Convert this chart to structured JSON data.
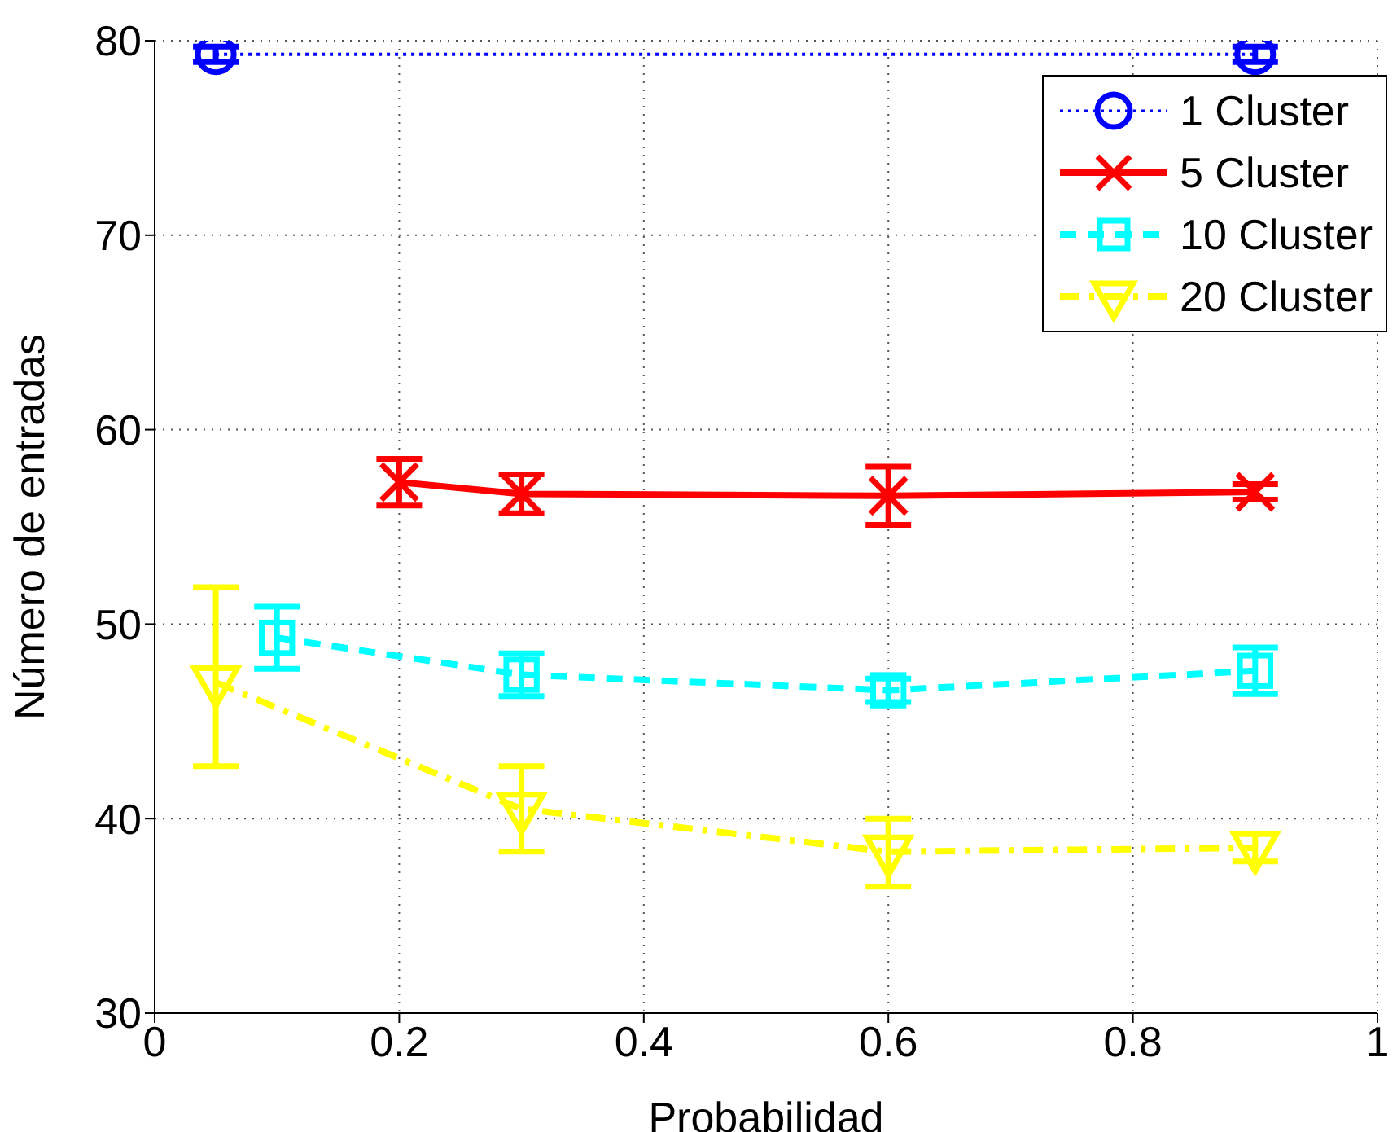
{
  "chart_data": {
    "type": "line",
    "xlabel": "Probabilidad",
    "ylabel": "Número de entradas",
    "xlim": [
      0,
      1
    ],
    "xticks": [
      0,
      0.2,
      0.4,
      0.6,
      0.8,
      1
    ],
    "ylim": [
      30,
      80
    ],
    "yticks": [
      30,
      40,
      50,
      60,
      70,
      80
    ],
    "grid": true,
    "legend": "top right",
    "series": [
      {
        "name": "1 Cluster",
        "color": "#0000ff",
        "x": [
          0.05,
          0.9
        ],
        "values": [
          79.3,
          79.3
        ],
        "errors": [
          0.4,
          0.4
        ],
        "marker": "circle",
        "line_style": "dotted"
      },
      {
        "name": "5 Cluster",
        "color": "#ff0000",
        "x": [
          0.2,
          0.3,
          0.6,
          0.9
        ],
        "values": [
          57.3,
          56.7,
          56.6,
          56.8
        ],
        "errors": [
          1.2,
          1.0,
          1.5,
          0.4
        ],
        "marker": "cross",
        "line_style": "solid"
      },
      {
        "name": "10 Cluster",
        "color": "#00ffff",
        "x": [
          0.1,
          0.3,
          0.6,
          0.9
        ],
        "values": [
          49.3,
          47.4,
          46.6,
          47.6
        ],
        "errors": [
          1.6,
          1.1,
          0.6,
          1.2
        ],
        "marker": "square",
        "line_style": "dashed"
      },
      {
        "name": "20 Cluster",
        "color": "#ffff00",
        "x": [
          0.05,
          0.3,
          0.6,
          0.9
        ],
        "values": [
          47.0,
          40.5,
          38.3,
          38.5
        ],
        "errors": [
          [
            42.7,
            51.9
          ],
          [
            38.3,
            42.7
          ],
          [
            36.5,
            40.0
          ],
          0.7
        ],
        "marker": "triangle",
        "line_style": "dashdot"
      }
    ]
  }
}
